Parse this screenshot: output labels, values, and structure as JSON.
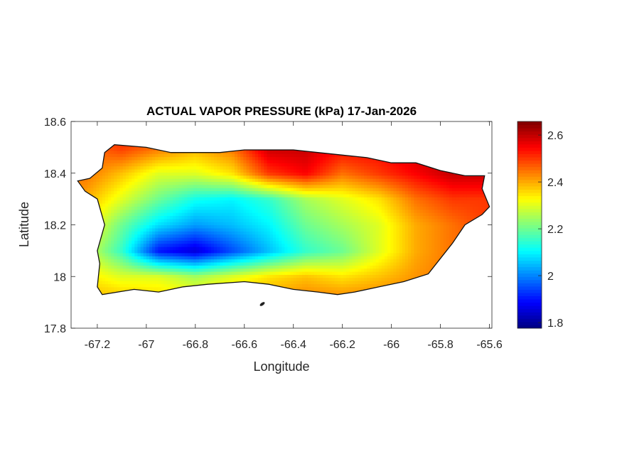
{
  "chart_data": {
    "type": "heatmap",
    "title": "ACTUAL VAPOR PRESSURE (kPa) 17-Jan-2026",
    "xlabel": "Longitude",
    "ylabel": "Latitude",
    "xlim": [
      -67.307,
      -65.59
    ],
    "ylim": [
      17.8,
      18.6
    ],
    "xticks": [
      -67.2,
      -67,
      -66.8,
      -66.6,
      -66.4,
      -66.2,
      -66,
      -65.8,
      -65.6
    ],
    "xtick_labels": [
      "-67.2",
      "-67",
      "-66.8",
      "-66.6",
      "-66.4",
      "-66.2",
      "-66",
      "-65.8",
      "-65.6"
    ],
    "yticks": [
      17.8,
      18,
      18.2,
      18.4,
      18.6
    ],
    "ytick_labels": [
      "17.8",
      "18",
      "18.2",
      "18.4",
      "18.6"
    ],
    "colorbar": {
      "colormap": "jet",
      "clim": [
        1.776,
        2.658
      ],
      "ticks": [
        1.8,
        2,
        2.2,
        2.4,
        2.6
      ],
      "tick_labels": [
        "1.8",
        "2",
        "2.2",
        "2.4",
        "2.6"
      ],
      "placement": "right"
    },
    "grid": false,
    "field": {
      "lons": [
        -67.25,
        -67.1,
        -66.95,
        -66.8,
        -66.65,
        -66.5,
        -66.35,
        -66.2,
        -66.05,
        -65.9,
        -65.75,
        -65.6
      ],
      "lats": [
        18.5,
        18.4,
        18.3,
        18.2,
        18.1,
        18.0,
        17.9
      ],
      "values": [
        [
          2.45,
          2.5,
          2.45,
          2.4,
          2.45,
          2.6,
          2.6,
          2.55,
          2.55,
          2.6,
          2.62,
          2.6
        ],
        [
          2.45,
          2.38,
          2.3,
          2.3,
          2.35,
          2.5,
          2.55,
          2.45,
          2.5,
          2.55,
          2.6,
          2.6
        ],
        [
          2.4,
          2.3,
          2.2,
          2.12,
          2.1,
          2.15,
          2.25,
          2.3,
          2.35,
          2.45,
          2.5,
          2.5
        ],
        [
          2.35,
          2.2,
          2.08,
          2.02,
          2.05,
          2.1,
          2.2,
          2.25,
          2.3,
          2.4,
          2.45,
          2.5
        ],
        [
          2.3,
          2.15,
          1.9,
          1.85,
          1.95,
          2.05,
          2.15,
          2.2,
          2.3,
          2.4,
          2.45,
          2.45
        ],
        [
          2.35,
          2.3,
          2.3,
          2.25,
          2.3,
          2.35,
          2.38,
          2.35,
          2.38,
          2.42,
          2.45,
          2.45
        ],
        [
          2.4,
          2.4,
          2.38,
          2.35,
          2.4,
          2.42,
          2.45,
          2.45,
          2.45,
          2.45,
          2.45,
          2.45
        ]
      ]
    }
  }
}
